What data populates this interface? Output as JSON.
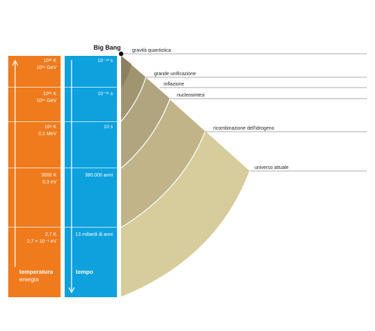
{
  "big_bang": "Big Bang",
  "temperature_column": {
    "title": "temperatura",
    "subtitle": "energia",
    "color": "#ef7b1d",
    "rows": [
      {
        "line1": "10³² K",
        "line2": "10¹⁹ GeV"
      },
      {
        "line1": "10²⁸ K",
        "line2": "10¹⁵ GeV"
      },
      {
        "line1": "10⁹ K",
        "line2": "0,1 MeV"
      },
      {
        "line1": "3000 K",
        "line2": "0,3 eV"
      },
      {
        "line1": "2,7 K",
        "line2": "2,7 × 10⁻⁴ eV"
      }
    ]
  },
  "time_column": {
    "title": "tempo",
    "color": "#0ea1de",
    "rows": [
      "10⁻⁴³ s",
      "10⁻³⁶ s",
      "10 s",
      "380.000 anni",
      "13 miliardi di anni"
    ]
  },
  "epochs": [
    "gravità  quantistica",
    "grande unificazione",
    "inflazione",
    "nucleosintesi",
    "ricombinazione dell'idrogeno",
    "universo attuale"
  ],
  "band_colors": [
    "#8c8060",
    "#a09570",
    "#b0a57e",
    "#c0b488",
    "#d6cc9c"
  ]
}
